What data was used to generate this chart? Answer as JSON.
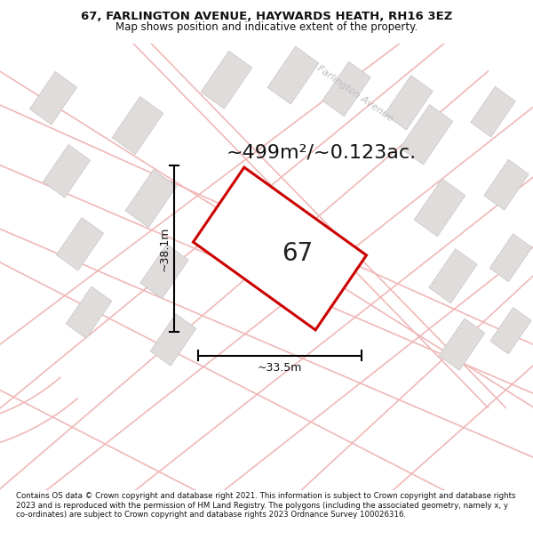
{
  "title_line1": "67, FARLINGTON AVENUE, HAYWARDS HEATH, RH16 3EZ",
  "title_line2": "Map shows position and indicative extent of the property.",
  "area_text": "~499m²/~0.123ac.",
  "label_number": "67",
  "dim_height": "~38.1m",
  "dim_width": "~33.5m",
  "street_label": "Farlington Avenue",
  "footer_text": "Contains OS data © Crown copyright and database right 2021. This information is subject to Crown copyright and database rights 2023 and is reproduced with the permission of HM Land Registry. The polygons (including the associated geometry, namely x, y co-ordinates) are subject to Crown copyright and database rights 2023 Ordnance Survey 100026316.",
  "map_bg": "#f7f4f4",
  "plot_fill": "#ffffff",
  "plot_border": "#cc0000",
  "building_fill": "#e0dcdc",
  "building_edge": "#c8c4c4",
  "road_color": "#f0b8b8",
  "road_lw": 1.2,
  "title_fontsize": 9.5,
  "subtitle_fontsize": 8.5,
  "area_fontsize": 16,
  "dim_fontsize": 9,
  "street_fontsize": 8,
  "footer_fontsize": 6.2,
  "number_fontsize": 20
}
